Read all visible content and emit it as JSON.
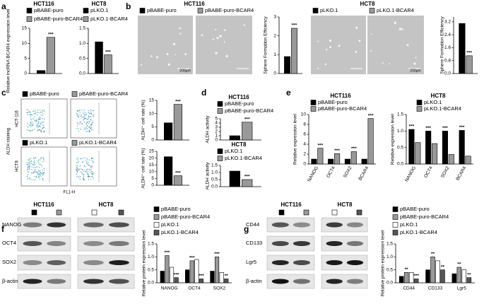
{
  "panel_letters": [
    "a",
    "b",
    "c",
    "d",
    "e",
    "f",
    "g"
  ],
  "panel_b": {
    "headers": [
      "HCT116",
      "HCT8"
    ],
    "scale_bars": [
      "200μm",
      "200μm"
    ]
  },
  "panel_c": {
    "row_labels": [
      "HCT-116",
      "HCT8"
    ],
    "y_axis": "ALDH staining",
    "x_axis": "FL1-H"
  },
  "panel_f": {
    "headers": [
      "HCT116",
      "HCT8"
    ],
    "rows": [
      "NANOG",
      "OCT4",
      "SOX2",
      "β-actin"
    ]
  },
  "panel_g": {
    "headers": [
      "HCT116",
      "HCT8"
    ],
    "rows": [
      "CD44",
      "CD133",
      "Lgr5",
      "β-actin"
    ]
  },
  "chart_data": [
    {
      "type": "bar",
      "title": "HCT116",
      "ylabel": "Relative lncRNA BCAR4 expression level",
      "categories": [
        null
      ],
      "series": [
        {
          "name": "pBABE-puro",
          "color": "#000000",
          "values": [
            1
          ]
        },
        {
          "name": "pBABE-puro-BCAR4",
          "color": "#999999",
          "values": [
            12
          ],
          "sig": [
            "***"
          ]
        }
      ],
      "ylim": [
        0,
        15
      ],
      "yticks": [
        0,
        5,
        10,
        15
      ]
    },
    {
      "type": "bar",
      "title": "HCT8",
      "categories": [
        null
      ],
      "series": [
        {
          "name": "pLKO.1",
          "color": "#000000",
          "values": [
            1.05
          ]
        },
        {
          "name": "pLKO.1-BCAR4",
          "color": "#999999",
          "values": [
            0.62
          ],
          "sig": [
            "***"
          ]
        }
      ],
      "ylim": [
        0,
        1.5
      ],
      "yticks": [
        {
          "value": 0,
          "label": "0.0"
        },
        0.5,
        {
          "value": 1,
          "label": "1.0"
        },
        1.5
      ]
    },
    {
      "type": "bar",
      "ylabel": "Sphere Formation Efficiency",
      "categories": [
        null
      ],
      "series": [
        {
          "name": "pBABE-puro",
          "color": "#000000",
          "values": [
            0.9
          ]
        },
        {
          "name": "pBABE-puro-BCAR4",
          "color": "#999999",
          "values": [
            2.4
          ],
          "sig": [
            "***"
          ]
        }
      ],
      "ylim": [
        0,
        3
      ],
      "yticks": [
        0,
        1,
        2,
        3
      ]
    },
    {
      "type": "bar",
      "ylabel": "Sphere Formation Efficiency",
      "categories": [
        null
      ],
      "series": [
        {
          "name": "pLKO.1",
          "color": "#000000",
          "values": [
            3.1
          ]
        },
        {
          "name": "pLKO.1-BCAR4",
          "color": "#999999",
          "values": [
            1.1
          ],
          "sig": [
            "***"
          ]
        }
      ],
      "ylim": [
        0,
        3.5
      ],
      "yticks": [
        {
          "value": 0,
          "label": "0.0"
        },
        0.8,
        1.6,
        2.4,
        3.2
      ]
    },
    {
      "type": "bar",
      "ylabel": "ALDH⁺ cell rate (%)",
      "categories": [
        null
      ],
      "series": [
        {
          "name": "pBABE-puro",
          "color": "#000000",
          "values": [
            6.5
          ]
        },
        {
          "name": "pBABE-puro-BCAR4",
          "color": "#999999",
          "values": [
            13.5
          ],
          "sig": [
            "***"
          ]
        }
      ],
      "ylim": [
        0,
        15
      ],
      "yticks": [
        0,
        5,
        10,
        15
      ]
    },
    {
      "type": "bar",
      "ylabel": "ALDH⁺ cell rate (%)",
      "categories": [
        null
      ],
      "series": [
        {
          "name": "pLKO.1",
          "color": "#000000",
          "values": [
            21
          ]
        },
        {
          "name": "pLKO.1-BCAR4",
          "color": "#999999",
          "values": [
            7
          ],
          "sig": [
            "***"
          ]
        }
      ],
      "ylim": [
        0,
        25
      ],
      "yticks": [
        0,
        5,
        10,
        15,
        20,
        25
      ]
    },
    {
      "type": "bar",
      "title": "HCT116",
      "ylabel": "ALDH activity",
      "categories": [
        null
      ],
      "series": [
        {
          "name": "pBABE-puro",
          "color": "#000000",
          "values": [
            1
          ]
        },
        {
          "name": "pBABE-puro-BCAR4",
          "color": "#999999",
          "values": [
            4.2
          ],
          "sig": [
            "***"
          ]
        }
      ],
      "ylim": [
        0,
        5
      ],
      "yticks": [
        0,
        1,
        2,
        3,
        4,
        5
      ]
    },
    {
      "type": "bar",
      "title": "HCT8",
      "ylabel": "ALDH activity",
      "categories": [
        null
      ],
      "series": [
        {
          "name": "pLKO.1",
          "color": "#000000",
          "values": [
            1.1
          ]
        },
        {
          "name": "pLKO.1-BCAR4",
          "color": "#999999",
          "values": [
            0.5
          ],
          "sig": [
            "***"
          ]
        }
      ],
      "ylim": [
        0,
        1.5
      ],
      "yticks": [
        {
          "value": 0,
          "label": "0.0"
        },
        0.5,
        {
          "value": 1,
          "label": "1.0"
        },
        1.5
      ]
    },
    {
      "type": "bar",
      "title": "HCT116",
      "ylabel": "Relative expression level",
      "categories": [
        "NANOG",
        "OCT4",
        "SOX2",
        "BCAR4"
      ],
      "series": [
        {
          "name": "pBABE-puro",
          "color": "#000000",
          "values": [
            1,
            1,
            1,
            1
          ]
        },
        {
          "name": "pBABE-puro-BCAR4",
          "color": "#999999",
          "values": [
            3.2,
            2.1,
            2.5,
            9.2
          ],
          "sig": [
            "***",
            "***",
            "***",
            "***"
          ]
        }
      ],
      "ylim": [
        0,
        10
      ],
      "yticks": [
        0,
        2,
        4,
        6,
        8,
        10
      ]
    },
    {
      "type": "bar",
      "title": "HCT8",
      "ylabel": "Relative expression level",
      "categories": [
        "NANOG",
        "OCT4",
        "SOX2",
        "BCAR4"
      ],
      "series": [
        {
          "name": "pLKO.1",
          "color": "#000000",
          "values": [
            1.05,
            1.0,
            1.0,
            1.02
          ],
          "sig": [
            "***",
            "***",
            "***",
            "***"
          ]
        },
        {
          "name": "pLKO.1-BCAR4",
          "color": "#999999",
          "values": [
            0.65,
            0.62,
            0.29,
            0.24
          ]
        }
      ],
      "ylim": [
        0,
        1.5
      ],
      "yticks": [
        {
          "value": 0,
          "label": "0.0"
        },
        0.5,
        {
          "value": 1,
          "label": "1.0"
        },
        1.5
      ]
    },
    {
      "type": "bar",
      "ylabel": "Relative protein expression level",
      "categories": [
        "NANOG",
        "OCT4",
        "SOX2"
      ],
      "series": [
        {
          "name": "pBABE-puro",
          "color": "#000000",
          "values": [
            0.45,
            0.5,
            0.45
          ]
        },
        {
          "name": "pBABE-puro-BCAR4",
          "color": "#999999",
          "values": [
            1.05,
            0.85,
            1.0
          ],
          "sig": [
            "***",
            "***",
            "***"
          ]
        },
        {
          "name": "pLKO.1",
          "color": "#ffffff",
          "values": [
            0.6,
            0.9,
            0.4
          ]
        },
        {
          "name": "pLKO.1-BCAR4",
          "color": "#555555",
          "values": [
            0.2,
            0.15,
            0.15
          ],
          "sig": [
            "***",
            "***",
            "**"
          ]
        }
      ],
      "ylim": [
        0,
        1.5
      ],
      "yticks": [
        {
          "value": 0,
          "label": "0.0"
        },
        0.5,
        {
          "value": 1,
          "label": "1.0"
        },
        1.5
      ]
    },
    {
      "type": "bar",
      "ylabel": "Relative protein expression level",
      "categories": [
        "CD44",
        "CD133",
        "Lgr5"
      ],
      "series": [
        {
          "name": "pBABE-puro",
          "color": "#000000",
          "values": [
            0.25,
            0.5,
            0.35
          ]
        },
        {
          "name": "pBABE-puro-BCAR4",
          "color": "#999999",
          "values": [
            0.4,
            1.0,
            0.6
          ],
          "sig": [
            "**",
            "**",
            "**"
          ]
        },
        {
          "name": "pLKO.1",
          "color": "#ffffff",
          "values": [
            0.4,
            0.85,
            0.5
          ]
        },
        {
          "name": "pLKO.1-BCAR4",
          "color": "#555555",
          "values": [
            0.15,
            0.5,
            0.2
          ],
          "sig": [
            "***",
            "**",
            "**"
          ]
        }
      ],
      "ylim": [
        0,
        1.5
      ],
      "yticks": [
        {
          "value": 0,
          "label": "0.0"
        },
        0.5,
        {
          "value": 1,
          "label": "1.0"
        },
        1.5
      ]
    }
  ]
}
